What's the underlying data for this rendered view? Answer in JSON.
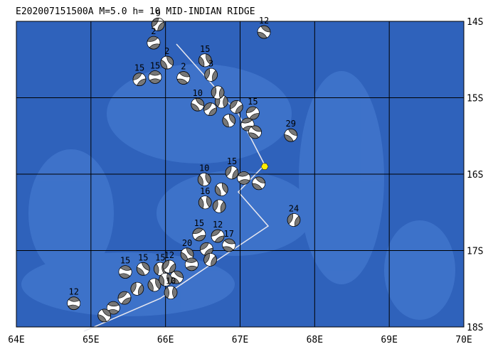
{
  "map": {
    "title": "E202007151500A  M=5.0 h= 10 MID-INDIAN RIDGE",
    "xlim": [
      64,
      70
    ],
    "ylim": [
      -18,
      -14
    ],
    "xticks": [
      {
        "value": 64,
        "label": "64E"
      },
      {
        "value": 65,
        "label": "65E"
      },
      {
        "value": 66,
        "label": "66E"
      },
      {
        "value": 67,
        "label": "67E"
      },
      {
        "value": 68,
        "label": "68E"
      },
      {
        "value": 69,
        "label": "69E"
      },
      {
        "value": 70,
        "label": "70E"
      }
    ],
    "yticks": [
      {
        "value": -14,
        "label": "14S"
      },
      {
        "value": -15,
        "label": "15S"
      },
      {
        "value": -16,
        "label": "16S"
      },
      {
        "value": -17,
        "label": "17S"
      },
      {
        "value": -18,
        "label": "18S"
      }
    ],
    "grid": true,
    "epicenter": {
      "lon": 67.33,
      "lat": -15.9,
      "color": "#ffee00"
    },
    "events": [
      {
        "lon": 67.32,
        "lat": -14.14,
        "depth": 12
      },
      {
        "lon": 66.53,
        "lat": -14.51,
        "depth": 15
      },
      {
        "lon": 66.61,
        "lat": -14.7,
        "depth": 3
      },
      {
        "lon": 65.65,
        "lat": -14.76,
        "depth": 15
      },
      {
        "lon": 65.86,
        "lat": -14.73,
        "depth": 15
      },
      {
        "lon": 67.68,
        "lat": -15.49,
        "depth": 29
      },
      {
        "lon": 66.52,
        "lat": -16.07,
        "depth": 10
      },
      {
        "lon": 67.72,
        "lat": -16.6,
        "depth": 24
      },
      {
        "lon": 66.7,
        "lat": -16.81,
        "depth": 12
      },
      {
        "lon": 64.77,
        "lat": -17.69,
        "depth": 12
      },
      {
        "lon": 66.43,
        "lat": -15.09,
        "depth": 10
      },
      {
        "lon": 66.53,
        "lat": -16.37,
        "depth": 16
      },
      {
        "lon": 66.89,
        "lat": -15.98,
        "depth": 15
      },
      {
        "lon": 67.17,
        "lat": -15.2,
        "depth": 15
      },
      {
        "lon": 65.46,
        "lat": -17.28,
        "depth": 15
      },
      {
        "lon": 65.7,
        "lat": -17.24,
        "depth": 15
      },
      {
        "lon": 65.93,
        "lat": -17.24,
        "depth": 15
      },
      {
        "lon": 66.05,
        "lat": -17.21,
        "depth": 12
      },
      {
        "lon": 66.45,
        "lat": -16.79,
        "depth": 15
      },
      {
        "lon": 66.85,
        "lat": -16.93,
        "depth": 17
      },
      {
        "lon": 66.29,
        "lat": -17.05,
        "depth": 20
      },
      {
        "lon": 66.07,
        "lat": -17.55,
        "depth": 10
      },
      {
        "lon": 65.9,
        "lat": -14.04,
        "depth": 9
      },
      {
        "lon": 65.84,
        "lat": -14.28,
        "depth": 2
      },
      {
        "lon": 66.24,
        "lat": -14.74,
        "depth": 2
      },
      {
        "lon": 66.02,
        "lat": -14.54,
        "depth": 2
      },
      {
        "lon": 66.75,
        "lat": -15.05
      },
      {
        "lon": 66.95,
        "lat": -15.12
      },
      {
        "lon": 67.1,
        "lat": -15.35
      },
      {
        "lon": 67.2,
        "lat": -15.45
      },
      {
        "lon": 66.85,
        "lat": -15.3
      },
      {
        "lon": 66.7,
        "lat": -14.93
      },
      {
        "lon": 66.6,
        "lat": -15.15
      },
      {
        "lon": 67.05,
        "lat": -16.05
      },
      {
        "lon": 67.25,
        "lat": -16.12
      },
      {
        "lon": 66.75,
        "lat": -16.2
      },
      {
        "lon": 66.72,
        "lat": -16.42
      },
      {
        "lon": 66.55,
        "lat": -16.98
      },
      {
        "lon": 66.35,
        "lat": -17.18
      },
      {
        "lon": 66.15,
        "lat": -17.35
      },
      {
        "lon": 65.85,
        "lat": -17.45
      },
      {
        "lon": 65.62,
        "lat": -17.5
      },
      {
        "lon": 65.45,
        "lat": -17.62
      },
      {
        "lon": 65.3,
        "lat": -17.75
      },
      {
        "lon": 65.18,
        "lat": -17.85
      },
      {
        "lon": 66.0,
        "lat": -17.38
      },
      {
        "lon": 66.6,
        "lat": -17.12
      }
    ]
  }
}
